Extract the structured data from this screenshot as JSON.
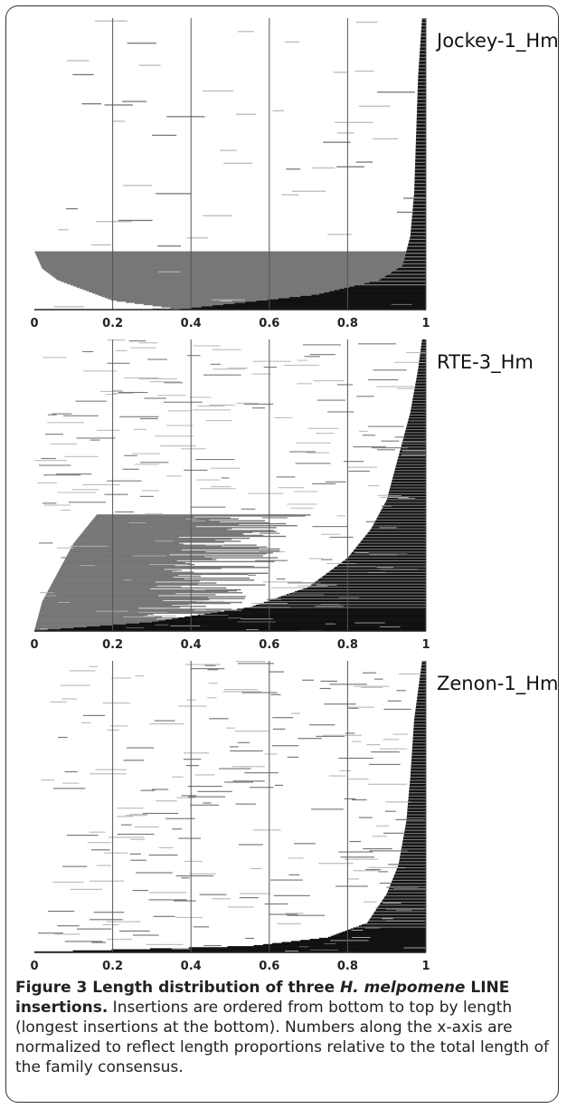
{
  "chart_data": [
    {
      "type": "bar",
      "title": "Jockey-1_Hm",
      "xlabel": "",
      "ylabel": "",
      "xlim": [
        0,
        1
      ],
      "x_ticks": [
        "0",
        "0.2",
        "0.4",
        "0.6",
        "0.8",
        "1"
      ],
      "grid": "vertical lines at 0.2, 0.4, 0.6, 0.8, 1",
      "order": "sorted bottom to top by length (longest at bottom)",
      "approx_insertion_count": 250,
      "length_profile": {
        "fraction_of_insertions_from_bottom": [
          0.0,
          0.03,
          0.07,
          0.1,
          0.14,
          0.2,
          0.3,
          0.5,
          0.75,
          1.0
        ],
        "min_start_proportion": [
          0.37,
          0.2,
          0.12,
          0.06,
          0.02,
          0.0,
          0.0,
          0.0,
          0.0,
          0.0
        ],
        "end_proportion": [
          1,
          1,
          1,
          1,
          1,
          1,
          1,
          1,
          1,
          1
        ]
      },
      "tail_start_profile": {
        "fraction_of_insertions_from_bottom": [
          0.0,
          0.05,
          0.1,
          0.15,
          0.25,
          0.4,
          0.6,
          0.8,
          1.0
        ],
        "start_proportion": [
          0.37,
          0.72,
          0.88,
          0.94,
          0.96,
          0.97,
          0.975,
          0.98,
          0.99
        ]
      }
    },
    {
      "type": "bar",
      "title": "RTE-3_Hm",
      "xlabel": "",
      "ylabel": "",
      "xlim": [
        0,
        1
      ],
      "x_ticks": [
        "0",
        "0.2",
        "0.4",
        "0.6",
        "0.8",
        "1"
      ],
      "grid": "vertical lines at 0.2, 0.4, 0.6, 0.8, 1",
      "order": "sorted bottom to top by length (longest at bottom)",
      "approx_insertion_count": 300,
      "tail_start_profile": {
        "fraction_of_insertions_from_bottom": [
          0.0,
          0.03,
          0.08,
          0.15,
          0.25,
          0.35,
          0.45,
          0.6,
          0.75,
          0.9,
          1.0
        ],
        "start_proportion": [
          0.0,
          0.3,
          0.55,
          0.7,
          0.8,
          0.86,
          0.9,
          0.93,
          0.96,
          0.98,
          0.99
        ]
      },
      "partial_profile": {
        "fraction_of_insertions_from_bottom": [
          0.0,
          0.1,
          0.2,
          0.3,
          0.4
        ],
        "start_proportion": [
          0.0,
          0.02,
          0.06,
          0.1,
          0.16
        ]
      }
    },
    {
      "type": "bar",
      "title": "Zenon-1_Hm",
      "xlabel": "",
      "ylabel": "",
      "xlim": [
        0,
        1
      ],
      "x_ticks": [
        "0",
        "0.2",
        "0.4",
        "0.6",
        "0.8",
        "1"
      ],
      "grid": "vertical lines at 0.2, 0.4, 0.6, 0.8, 1",
      "order": "sorted bottom to top by length (longest at bottom)",
      "approx_insertion_count": 280,
      "tail_start_profile": {
        "fraction_of_insertions_from_bottom": [
          0.0,
          0.02,
          0.05,
          0.1,
          0.2,
          0.3,
          0.45,
          0.6,
          0.8,
          1.0
        ],
        "start_proportion": [
          0.0,
          0.55,
          0.75,
          0.85,
          0.9,
          0.93,
          0.95,
          0.96,
          0.97,
          0.99
        ]
      }
    }
  ],
  "caption": {
    "label": "Figure 3",
    "title_part1": " Length distribution of three ",
    "title_species": "H. melpomene",
    "title_part2": " LINE insertions.",
    "body": " Insertions are ordered from bottom to top by length (longest insertions at the bottom). Numbers along the x-axis are normalized to reflect length proportions relative to the total length of the family consensus."
  },
  "colors": {
    "ink": "#111111",
    "mid_gray": "#777777",
    "light_gray": "#bbbbbb",
    "grid": "#555555"
  }
}
